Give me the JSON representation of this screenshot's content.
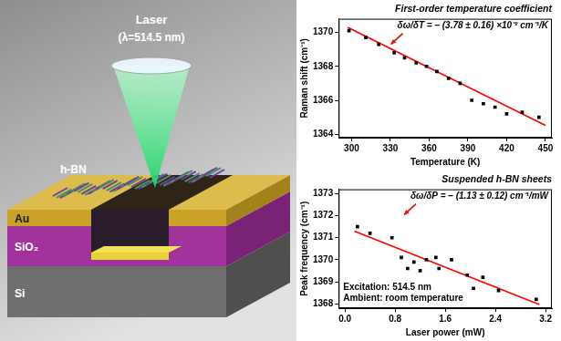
{
  "diagram": {
    "laser": {
      "label": "Laser",
      "wavelength": "(λ=514.5 nm)"
    },
    "sample": "h-BN",
    "layers": [
      "Au",
      "SiO₂",
      "Si"
    ]
  },
  "chart_data": [
    {
      "type": "scatter",
      "title": "First-order temperature coefficient",
      "annotations": [
        "δω/δT = – (3.78 ± 0.16) ×10⁻² cm⁻¹/K"
      ],
      "x_label": "Temperature (K)",
      "y_label": "Raman shift (cm⁻¹)",
      "xlim": [
        290,
        455
      ],
      "xticks": [
        300,
        330,
        360,
        390,
        420,
        450
      ],
      "ylim": [
        1363.8,
        1370.8
      ],
      "yticks": [
        1364,
        1366,
        1368,
        1370
      ],
      "grid": false,
      "series": [
        {
          "type": "scatter",
          "color": "#000000",
          "marker": "square",
          "x": [
            298,
            311,
            321,
            333,
            341,
            350,
            358,
            366,
            375,
            384,
            393,
            402,
            411,
            420,
            432,
            445
          ],
          "values": [
            1370.1,
            1369.7,
            1369.3,
            1368.8,
            1368.5,
            1368.2,
            1368.0,
            1367.7,
            1367.3,
            1367.0,
            1366.0,
            1365.8,
            1365.6,
            1365.2,
            1365.3,
            1365.0
          ]
        },
        {
          "type": "line",
          "color": "#ff0000",
          "line_style": "solid",
          "x": [
            297,
            450
          ],
          "values": [
            1370.3,
            1364.52
          ]
        }
      ]
    },
    {
      "type": "scatter",
      "title": "Suspended h-BN sheets",
      "annotations": [
        "δω/δP = – (1.13 ± 0.12) cm⁻¹/mW",
        "Excitation: 514.5 nm",
        "Ambient: room temperature"
      ],
      "x_label": "Laser power (mW)",
      "y_label": "Peak frequency (cm⁻¹)",
      "xlim": [
        -0.1,
        3.3
      ],
      "xticks": [
        {
          "value": 0,
          "label": "0.0"
        },
        0.8,
        1.6,
        2.4,
        3.2
      ],
      "ylim": [
        1367.8,
        1373.2
      ],
      "yticks": [
        1368,
        1369,
        1370,
        1371,
        1372,
        1373
      ],
      "grid": false,
      "series": [
        {
          "type": "scatter",
          "color": "#000000",
          "marker": "square",
          "x": [
            0.2,
            0.4,
            0.75,
            0.9,
            1.0,
            1.1,
            1.2,
            1.3,
            1.45,
            1.5,
            1.7,
            1.95,
            2.05,
            2.2,
            2.45,
            3.05
          ],
          "values": [
            1371.5,
            1371.2,
            1371.0,
            1370.1,
            1369.6,
            1369.9,
            1369.5,
            1370.0,
            1370.1,
            1369.6,
            1370.0,
            1369.3,
            1368.7,
            1369.2,
            1368.6,
            1368.2
          ]
        },
        {
          "type": "line",
          "color": "#ff0000",
          "line_style": "solid",
          "x": [
            0.15,
            3.1
          ],
          "values": [
            1371.3,
            1367.97
          ]
        }
      ]
    }
  ]
}
